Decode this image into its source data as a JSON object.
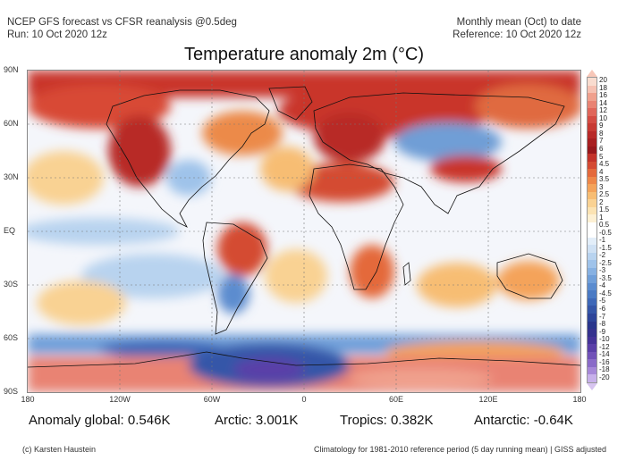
{
  "header": {
    "left_line1": "NCEP GFS forecast vs CFSR reanalysis @0.5deg",
    "left_line2": "Run: 10 Oct 2020 12z",
    "right_line1": "Monthly mean (Oct) to date",
    "right_line2": "Reference: 10 Oct 2020 12z"
  },
  "map": {
    "title": "Temperature anomaly 2m (°C)",
    "lat_labels": [
      "90N",
      "60N",
      "30N",
      "EQ",
      "30S",
      "60S",
      "90S"
    ],
    "lon_labels": [
      "180",
      "120W",
      "60W",
      "0",
      "60E",
      "120E",
      "180"
    ],
    "colors": {
      "ocean_neutral": "#f4f6fb",
      "warm_light": "#f9cf9e",
      "warm_mid": "#ec8a4a",
      "warm_strong": "#c9342a",
      "warm_extreme": "#9e1a1a",
      "cool_light": "#b9d3ef",
      "cool_mid": "#6f9ed6",
      "cool_strong": "#3e5fb8",
      "cool_extreme": "#5a3fa8",
      "coast": "#111111",
      "grid": "#777777"
    }
  },
  "colorbar": {
    "ticks": [
      "20",
      "18",
      "16",
      "14",
      "12",
      "10",
      "9",
      "8",
      "7",
      "6",
      "5",
      "4.5",
      "4",
      "3.5",
      "3",
      "2.5",
      "2",
      "1.5",
      "1",
      "0.5",
      "-0.5",
      "-1",
      "-1.5",
      "-2",
      "-2.5",
      "-3",
      "-3.5",
      "-4",
      "-4.5",
      "-5",
      "-6",
      "-7",
      "-8",
      "-9",
      "-10",
      "-12",
      "-14",
      "-16",
      "-18",
      "-20"
    ],
    "colors": [
      "#f9dccf",
      "#f6c1b2",
      "#f0a08d",
      "#e98373",
      "#e0665a",
      "#d44c43",
      "#c73a33",
      "#b82a28",
      "#a81f20",
      "#98181c",
      "#c3332a",
      "#d44b33",
      "#e4693b",
      "#ee8748",
      "#f4a35a",
      "#f7bd73",
      "#f9d293",
      "#fbe3b3",
      "#fdf0d3",
      "#ffffff",
      "#ffffff",
      "#e3eef9",
      "#cfe1f4",
      "#b8d3ef",
      "#9fc3ea",
      "#87b1e2",
      "#709fd9",
      "#5b8ccf",
      "#4a7ac4",
      "#3e68b8",
      "#3556a8",
      "#2e459a",
      "#2a368c",
      "#35328e",
      "#453398",
      "#5a3fa8",
      "#7152b8",
      "#8a6bc8",
      "#a688d8",
      "#c7b0ea"
    ]
  },
  "stats": {
    "global_label": "Anomaly global:",
    "global_value": "0.546K",
    "arctic_label": "Arctic:",
    "arctic_value": "3.001K",
    "tropics_label": "Tropics:",
    "tropics_value": "0.382K",
    "antarctic_label": "Antarctic:",
    "antarctic_value": "-0.64K"
  },
  "footer": {
    "credit": "(c) Karsten Haustein",
    "note": "Climatology for 1981-2010 reference period (5 day running mean) | GISS adjusted"
  }
}
